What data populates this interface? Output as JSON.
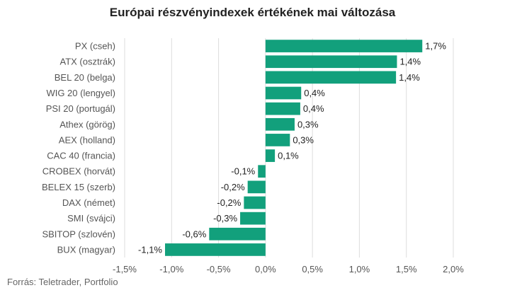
{
  "title": "Európai részvényindexek értékének mai változása",
  "source": "Forrás: Teletrader, Portfolio",
  "colors": {
    "bar": "#12a07c",
    "grid": "#dddddd",
    "text": "#555555"
  },
  "chart_data": {
    "type": "bar",
    "orientation": "horizontal",
    "title": "Európai részvényindexek értékének mai változása",
    "xlabel": "",
    "ylabel": "",
    "grid": true,
    "xlim": [
      -1.5,
      2.0
    ],
    "ticks": [
      -1.5,
      -1.0,
      -0.5,
      0.0,
      0.5,
      1.0,
      1.5,
      2.0
    ],
    "tick_labels": [
      "-1,5%",
      "-1,0%",
      "-0,5%",
      "0,0%",
      "0,5%",
      "1,0%",
      "1,5%",
      "2,0%"
    ],
    "categories": [
      "PX (cseh)",
      "ATX (osztrák)",
      "BEL 20 (belga)",
      "WIG 20 (lengyel)",
      "PSI 20 (portugál)",
      "Athex (görög)",
      "AEX (holland)",
      "CAC 40 (francia)",
      "CROBEX (horvát)",
      "BELEX 15 (szerb)",
      "DAX (német)",
      "SMI (svájci)",
      "SBITOP (szlovén)",
      "BUX (magyar)"
    ],
    "values": [
      1.67,
      1.4,
      1.39,
      0.38,
      0.37,
      0.31,
      0.26,
      0.1,
      -0.08,
      -0.19,
      -0.23,
      -0.27,
      -0.6,
      -1.07
    ],
    "value_labels": [
      "1,7%",
      "1,4%",
      "1,4%",
      "0,4%",
      "0,4%",
      "0,3%",
      "0,3%",
      "0,1%",
      "-0,1%",
      "-0,2%",
      "-0,2%",
      "-0,3%",
      "-0,6%",
      "-1,1%"
    ]
  }
}
